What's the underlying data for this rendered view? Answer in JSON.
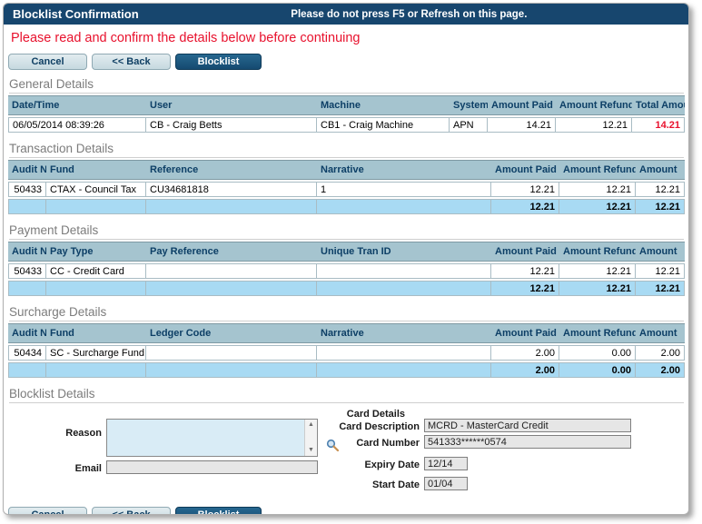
{
  "titlebar": {
    "title": "Blocklist Confirmation",
    "message": "Please do not press F5 or Refresh on this page."
  },
  "warning": "Please read and confirm the details below before continuing",
  "buttons": {
    "cancel": "Cancel",
    "back": "<< Back",
    "blocklist": "Blocklist"
  },
  "sections": {
    "general": {
      "title": "General Details",
      "table": {
        "headers": [
          "Date/Time",
          "User",
          "Machine",
          "System",
          "Amount Paid",
          "Amount Refunded",
          "Total Amount"
        ],
        "rows": [
          {
            "cells": [
              "06/05/2014 08:39:26",
              "CB - Craig Betts",
              "CB1 - Craig Machine",
              "APN",
              "14.21",
              "12.21",
              "14.21"
            ]
          }
        ]
      }
    },
    "transaction": {
      "title": "Transaction Details",
      "table": {
        "headers": [
          "Audit No",
          "Fund",
          "Reference",
          "Narrative",
          "Amount Paid",
          "Amount Refunded",
          "Amount"
        ],
        "rows": [
          {
            "cells": [
              "50433",
              "CTAX - Council Tax",
              "CU34681818",
              "1",
              "12.21",
              "12.21",
              "12.21"
            ]
          },
          {
            "cells": [
              "",
              "",
              "",
              "",
              "12.21",
              "12.21",
              "12.21"
            ],
            "total": true
          }
        ]
      }
    },
    "payment": {
      "title": "Payment Details",
      "table": {
        "headers": [
          "Audit No",
          "Pay Type",
          "Pay Reference",
          "Unique Tran ID",
          "Amount Paid",
          "Amount Refunded",
          "Amount"
        ],
        "rows": [
          {
            "cells": [
              "50433",
              "CC - Credit Card",
              "",
              "",
              "12.21",
              "12.21",
              "12.21"
            ]
          },
          {
            "cells": [
              "",
              "",
              "",
              "",
              "12.21",
              "12.21",
              "12.21"
            ],
            "total": true
          }
        ]
      }
    },
    "surcharge": {
      "title": "Surcharge Details",
      "table": {
        "headers": [
          "Audit No",
          "Fund",
          "Ledger Code",
          "Narrative",
          "Amount Paid",
          "Amount Refunded",
          "Amount"
        ],
        "rows": [
          {
            "cells": [
              "50434",
              "SC - Surcharge Fund",
              "",
              "",
              "2.00",
              "0.00",
              "2.00"
            ]
          },
          {
            "cells": [
              "",
              "",
              "",
              "",
              "2.00",
              "0.00",
              "2.00"
            ],
            "total": true
          }
        ]
      }
    },
    "blocklist": {
      "title": "Blocklist Details",
      "reason_label": "Reason",
      "reason_value": "",
      "email_label": "Email",
      "email_value": "",
      "card": {
        "heading": "Card Details",
        "description_label": "Card Description",
        "description_value": "MCRD - MasterCard Credit",
        "number_label": "Card Number",
        "number_value": "541333******0574",
        "expiry_label": "Expiry Date",
        "expiry_value": "12/14",
        "start_label": "Start Date",
        "start_value": "01/04"
      }
    }
  },
  "colors": {
    "header_navy": "#17466e",
    "warning_red": "#e8112d",
    "table_header_bg": "#a5c4cf",
    "total_row_bg": "#a8daf3",
    "reason_bg": "#d9ecf6",
    "input_bg": "#e6e6e6"
  }
}
